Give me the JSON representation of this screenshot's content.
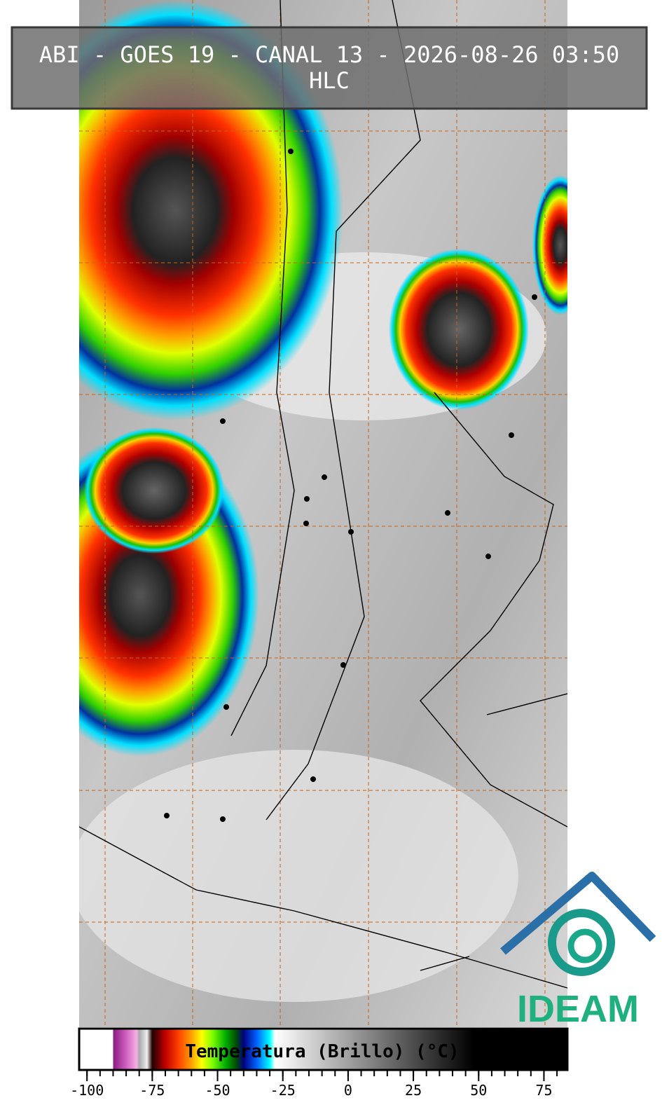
{
  "header": {
    "title": "ABI - GOES 19 - CANAL 13 - 2026-08-26 03:50",
    "subtitle": "HLC"
  },
  "colorbar": {
    "label": "Temperatura (Brillo) (°C)",
    "lim": [
      -103,
      84
    ],
    "ticks": [
      -100,
      -75,
      -50,
      -25,
      0,
      25,
      50,
      75
    ],
    "minor_ticks": [
      -100,
      -95,
      -90,
      -85,
      -80,
      -75,
      -70,
      -65,
      -60,
      -55,
      -50,
      -45,
      -40,
      -35,
      -30,
      -25,
      -20,
      -15,
      -10,
      -5,
      0,
      5,
      10,
      15,
      20,
      25,
      30,
      35,
      40,
      45,
      50,
      55,
      60,
      65,
      70,
      75,
      80
    ],
    "colormap": [
      {
        "value": -103,
        "color": "#ffffff"
      },
      {
        "value": -90,
        "color": "#ffffff"
      },
      {
        "value": -90,
        "color": "#8a1a80"
      },
      {
        "value": -85,
        "color": "#d060c0"
      },
      {
        "value": -81,
        "color": "#f4b0e4"
      },
      {
        "value": -80,
        "color": "#a8a8a8"
      },
      {
        "value": -77,
        "color": "#eeeeee"
      },
      {
        "value": -75,
        "color": "#200000"
      },
      {
        "value": -70,
        "color": "#c00000"
      },
      {
        "value": -65,
        "color": "#ff4000"
      },
      {
        "value": -60,
        "color": "#ffa000"
      },
      {
        "value": -56,
        "color": "#ffff00"
      },
      {
        "value": -52,
        "color": "#80ff00"
      },
      {
        "value": -47,
        "color": "#00b000"
      },
      {
        "value": -43,
        "color": "#005000"
      },
      {
        "value": -40,
        "color": "#000080"
      },
      {
        "value": -35,
        "color": "#0060ff"
      },
      {
        "value": -30,
        "color": "#00ffff"
      },
      {
        "value": -28,
        "color": "#ffffff"
      },
      {
        "value": 48,
        "color": "#000000"
      },
      {
        "value": 84,
        "color": "#000000"
      }
    ]
  },
  "logo": {
    "text": "IDEAM"
  }
}
